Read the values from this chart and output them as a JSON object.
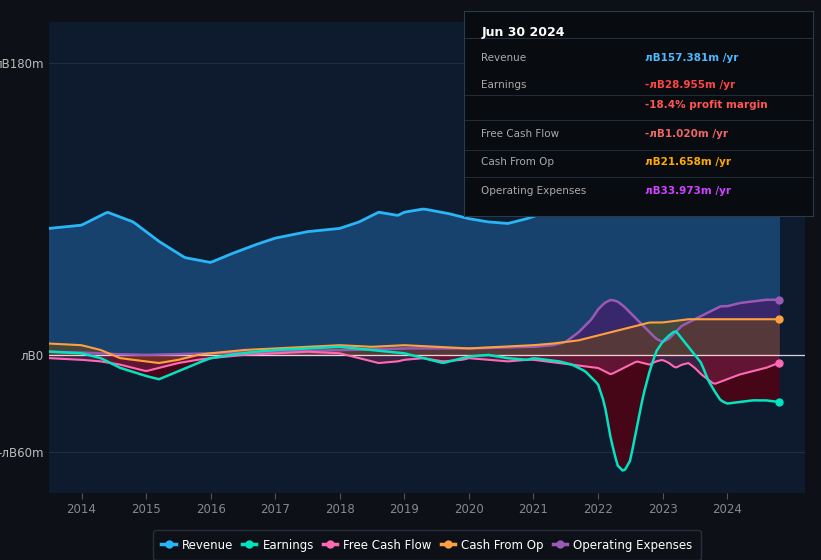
{
  "bg_color": "#0d1117",
  "plot_bg_color": "#0e1a2e",
  "y_labels": [
    "лB180m",
    "лB0",
    "-лB60m"
  ],
  "y_ticks": [
    180,
    0,
    -60
  ],
  "x_ticks": [
    2014,
    2015,
    2016,
    2017,
    2018,
    2019,
    2020,
    2021,
    2022,
    2023,
    2024
  ],
  "ylim": [
    -85,
    205
  ],
  "xlim": [
    2013.5,
    2025.2
  ],
  "series": {
    "revenue": {
      "color": "#29b6f6",
      "fill_color": "#1a4a7a",
      "fill_alpha": 0.85,
      "linewidth": 2.0,
      "label": "Revenue"
    },
    "earnings": {
      "color": "#00e5c0",
      "fill_pos_color": "#005544",
      "fill_neg_color": "#5a0010",
      "fill_alpha": 0.75,
      "linewidth": 1.8,
      "label": "Earnings"
    },
    "fcf": {
      "color": "#ff69b4",
      "fill_color": "#993366",
      "fill_alpha": 0.35,
      "linewidth": 1.5,
      "label": "Free Cash Flow"
    },
    "cashfromop": {
      "color": "#ffa040",
      "fill_color": "#7a4f00",
      "fill_alpha": 0.45,
      "linewidth": 1.5,
      "label": "Cash From Op"
    },
    "opex": {
      "color": "#9b59b6",
      "fill_color": "#4a1a6a",
      "fill_alpha": 0.65,
      "linewidth": 1.8,
      "label": "Operating Expenses"
    }
  },
  "legend": [
    {
      "label": "Revenue",
      "color": "#29b6f6"
    },
    {
      "label": "Earnings",
      "color": "#00e5c0"
    },
    {
      "label": "Free Cash Flow",
      "color": "#ff69b4"
    },
    {
      "label": "Cash From Op",
      "color": "#ffa040"
    },
    {
      "label": "Operating Expenses",
      "color": "#9b59b6"
    }
  ],
  "infobox": {
    "date": "Jun 30 2024",
    "rows": [
      {
        "label": "Revenue",
        "value": "лB157.381m /yr",
        "vcolor": "#4db8ff"
      },
      {
        "label": "Earnings",
        "value": "-лB28.955m /yr",
        "vcolor": "#ff4444"
      },
      {
        "label": "",
        "value": "-18.4% profit margin",
        "vcolor": "#ff5555"
      },
      {
        "label": "Free Cash Flow",
        "value": "-лB1.020m /yr",
        "vcolor": "#ee6666"
      },
      {
        "label": "Cash From Op",
        "value": "лB21.658m /yr",
        "vcolor": "#ffaa00"
      },
      {
        "label": "Operating Expenses",
        "value": "лB33.973m /yr",
        "vcolor": "#cc44ff"
      }
    ]
  }
}
